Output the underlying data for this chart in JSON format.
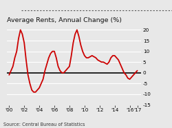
{
  "title": "Average Rents, Annual Change (%)",
  "source": "Source: Central Bureau of Statistics",
  "line_color": "#cc0000",
  "background_color": "#e8e8e8",
  "plot_bg_color": "#e8e8e8",
  "zero_line_color": "#000000",
  "grid_color": "#ffffff",
  "ylim": [
    -15,
    22
  ],
  "yticks": [
    -15,
    -10,
    -5,
    0,
    5,
    10,
    15,
    20
  ],
  "xtick_labels": [
    "'00",
    "'02",
    "'04",
    "'06",
    "'08",
    "'10",
    "'12",
    "'14",
    "'16",
    "'17"
  ],
  "xtick_positions": [
    2000,
    2002,
    2004,
    2006,
    2008,
    2010,
    2012,
    2014,
    2016,
    2017
  ],
  "x_data": [
    2000,
    2000.25,
    2000.5,
    2000.75,
    2001,
    2001.25,
    2001.5,
    2001.75,
    2002,
    2002.25,
    2002.5,
    2002.75,
    2003,
    2003.25,
    2003.5,
    2003.75,
    2004,
    2004.25,
    2004.5,
    2004.75,
    2005,
    2005.25,
    2005.5,
    2005.75,
    2006,
    2006.25,
    2006.5,
    2006.75,
    2007,
    2007.25,
    2007.5,
    2007.75,
    2008,
    2008.25,
    2008.5,
    2008.75,
    2009,
    2009.25,
    2009.5,
    2009.75,
    2010,
    2010.25,
    2010.5,
    2010.75,
    2011,
    2011.25,
    2011.5,
    2011.75,
    2012,
    2012.25,
    2012.5,
    2012.75,
    2013,
    2013.25,
    2013.5,
    2013.75,
    2014,
    2014.25,
    2014.5,
    2014.75,
    2015,
    2015.25,
    2015.5,
    2015.75,
    2016,
    2016.25,
    2016.5,
    2016.75,
    2017
  ],
  "y_data": [
    -1,
    1,
    3,
    7,
    10,
    16,
    20,
    18,
    14,
    6,
    -1,
    -5,
    -8,
    -9,
    -9,
    -8,
    -7,
    -5,
    -3,
    1,
    4,
    7,
    9,
    10,
    10,
    7,
    3,
    1,
    0,
    0,
    1,
    2,
    3,
    8,
    14,
    18,
    20,
    17,
    13,
    10,
    8,
    7,
    7,
    7.5,
    8,
    7.5,
    7,
    6,
    5.5,
    5,
    5,
    4.5,
    4,
    5,
    7,
    8,
    8,
    7,
    6,
    4,
    2,
    0,
    -1,
    -2.5,
    -3,
    -2,
    -1,
    0,
    1
  ]
}
